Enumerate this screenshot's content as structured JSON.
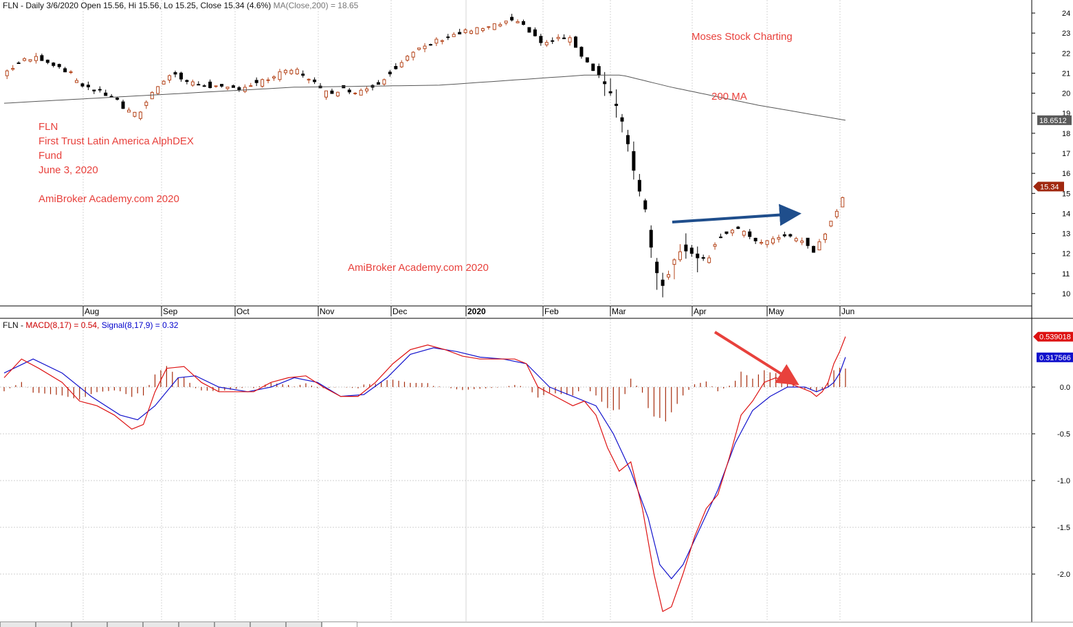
{
  "header": {
    "price_info": "FLN - Daily 3/6/2020 Open 15.56, Hi 15.56, Lo 15.25, Close 15.34 (4.6%)",
    "ma_info": "MA(Close,200) = 18.65",
    "macd_prefix": "FLN - ",
    "macd_label": "MACD(8,17) = 0.54,",
    "signal_label": "Signal(8,17,9) = 0.32"
  },
  "annotations": {
    "fund_lines": [
      "FLN",
      "First Trust Latin America AlphDEX",
      "Fund",
      "June 3, 2020",
      "",
      "AmiBroker Academy.com  2020"
    ],
    "watermark_top": "Moses Stock Charting",
    "ma_label": "200 MA",
    "watermark_mid": "AmiBroker Academy.com 2020"
  },
  "colors": {
    "up_candle": "#b5451b",
    "down_candle": "#000000",
    "ma_line": "#555555",
    "macd_line": "#dd1111",
    "signal_line": "#1111cc",
    "histogram": "#a52a0a",
    "arrow_blue": "#1f4e8c",
    "arrow_red": "#e8413c",
    "annotation": "#e8413c"
  },
  "chart_data": [
    {
      "type": "candlestick",
      "title": "FLN - Daily 3/6/2020",
      "x_labels": [
        "Aug",
        "Sep",
        "Oct",
        "Nov",
        "Dec",
        "2020",
        "Feb",
        "Mar",
        "Apr",
        "May",
        "Jun"
      ],
      "ylim": [
        9.5,
        24.5
      ],
      "y_ticks": [
        10,
        11,
        12,
        13,
        14,
        15,
        16,
        17,
        18,
        19,
        20,
        21,
        22,
        23,
        24
      ],
      "price_badges": [
        {
          "value": "18.6512",
          "kind": "ma"
        },
        {
          "value": "15.34",
          "kind": "price"
        }
      ],
      "close_waypoints": [
        [
          0,
          21.0
        ],
        [
          6,
          21.6
        ],
        [
          12,
          21.8
        ],
        [
          18,
          21.4
        ],
        [
          22,
          21.1
        ],
        [
          26,
          20.5
        ],
        [
          32,
          20.1
        ],
        [
          38,
          19.8
        ],
        [
          42,
          19.1
        ],
        [
          46,
          18.9
        ],
        [
          50,
          19.8
        ],
        [
          54,
          20.6
        ],
        [
          58,
          21.0
        ],
        [
          64,
          20.5
        ],
        [
          70,
          20.4
        ],
        [
          76,
          20.2
        ],
        [
          82,
          20.3
        ],
        [
          88,
          20.5
        ],
        [
          94,
          20.9
        ],
        [
          100,
          21.2
        ],
        [
          106,
          20.7
        ],
        [
          110,
          20.0
        ],
        [
          116,
          20.2
        ],
        [
          122,
          20.1
        ],
        [
          128,
          20.4
        ],
        [
          134,
          21.2
        ],
        [
          140,
          21.9
        ],
        [
          146,
          22.4
        ],
        [
          152,
          22.8
        ],
        [
          160,
          23.1
        ],
        [
          168,
          23.3
        ],
        [
          174,
          23.6
        ],
        [
          180,
          23.3
        ],
        [
          186,
          22.4
        ],
        [
          192,
          22.8
        ],
        [
          196,
          22.6
        ],
        [
          200,
          21.7
        ],
        [
          204,
          21.1
        ],
        [
          208,
          20.3
        ],
        [
          212,
          19.0
        ],
        [
          215,
          17.5
        ],
        [
          218,
          15.6
        ],
        [
          221,
          14.2
        ],
        [
          223,
          12.4
        ],
        [
          225,
          11.1
        ],
        [
          227,
          10.4
        ],
        [
          230,
          11.4
        ],
        [
          234,
          12.3
        ],
        [
          238,
          12.0
        ],
        [
          242,
          11.6
        ],
        [
          246,
          12.8
        ],
        [
          252,
          13.2
        ],
        [
          258,
          12.8
        ],
        [
          262,
          12.4
        ],
        [
          266,
          12.9
        ],
        [
          272,
          12.8
        ],
        [
          276,
          12.5
        ],
        [
          279,
          12.1
        ],
        [
          282,
          12.8
        ],
        [
          284,
          13.2
        ],
        [
          286,
          13.9
        ],
        [
          288,
          14.3
        ],
        [
          290,
          15.34
        ]
      ],
      "ma_200": [
        [
          0,
          19.5
        ],
        [
          100,
          20.3
        ],
        [
          150,
          20.4
        ],
        [
          200,
          20.9
        ],
        [
          213,
          20.9
        ],
        [
          230,
          20.3
        ],
        [
          260,
          19.4
        ],
        [
          290,
          18.65
        ]
      ]
    },
    {
      "type": "line",
      "title": "MACD(8,17) = 0.54, Signal(8,17,9) = 0.32",
      "ylim": [
        -2.45,
        0.6
      ],
      "y_ticks": [
        0.0,
        -0.5,
        -1.0,
        -1.5,
        -2.0
      ],
      "value_badges": [
        {
          "value": "0.539018",
          "series": "MACD"
        },
        {
          "value": "0.317566",
          "series": "Signal"
        }
      ],
      "series": [
        {
          "name": "MACD",
          "points": [
            [
              0,
              0.1
            ],
            [
              6,
              0.3
            ],
            [
              12,
              0.2
            ],
            [
              20,
              0.05
            ],
            [
              26,
              -0.15
            ],
            [
              32,
              -0.2
            ],
            [
              38,
              -0.3
            ],
            [
              44,
              -0.45
            ],
            [
              48,
              -0.4
            ],
            [
              52,
              -0.05
            ],
            [
              56,
              0.2
            ],
            [
              62,
              0.22
            ],
            [
              68,
              0.05
            ],
            [
              74,
              -0.05
            ],
            [
              80,
              -0.05
            ],
            [
              86,
              -0.05
            ],
            [
              92,
              0.05
            ],
            [
              98,
              0.1
            ],
            [
              104,
              0.12
            ],
            [
              110,
              0.0
            ],
            [
              116,
              -0.1
            ],
            [
              122,
              -0.1
            ],
            [
              128,
              0.05
            ],
            [
              134,
              0.25
            ],
            [
              140,
              0.4
            ],
            [
              146,
              0.45
            ],
            [
              152,
              0.4
            ],
            [
              158,
              0.33
            ],
            [
              164,
              0.3
            ],
            [
              170,
              0.3
            ],
            [
              176,
              0.3
            ],
            [
              180,
              0.25
            ],
            [
              184,
              0.0
            ],
            [
              190,
              -0.1
            ],
            [
              196,
              -0.2
            ],
            [
              200,
              -0.15
            ],
            [
              204,
              -0.3
            ],
            [
              208,
              -0.65
            ],
            [
              212,
              -0.9
            ],
            [
              216,
              -0.8
            ],
            [
              220,
              -1.3
            ],
            [
              224,
              -2.0
            ],
            [
              227,
              -2.4
            ],
            [
              230,
              -2.35
            ],
            [
              234,
              -2.0
            ],
            [
              238,
              -1.6
            ],
            [
              242,
              -1.3
            ],
            [
              246,
              -1.15
            ],
            [
              250,
              -0.75
            ],
            [
              254,
              -0.3
            ],
            [
              258,
              -0.15
            ],
            [
              262,
              0.05
            ],
            [
              266,
              0.1
            ],
            [
              270,
              0.05
            ],
            [
              274,
              0.0
            ],
            [
              278,
              -0.05
            ],
            [
              280,
              -0.1
            ],
            [
              282,
              -0.05
            ],
            [
              284,
              0.05
            ],
            [
              286,
              0.25
            ],
            [
              288,
              0.38
            ],
            [
              290,
              0.54
            ]
          ]
        },
        {
          "name": "Signal",
          "points": [
            [
              0,
              0.15
            ],
            [
              10,
              0.3
            ],
            [
              20,
              0.15
            ],
            [
              30,
              -0.1
            ],
            [
              40,
              -0.3
            ],
            [
              46,
              -0.35
            ],
            [
              52,
              -0.2
            ],
            [
              60,
              0.1
            ],
            [
              66,
              0.12
            ],
            [
              74,
              0.0
            ],
            [
              84,
              -0.05
            ],
            [
              92,
              0.0
            ],
            [
              100,
              0.1
            ],
            [
              108,
              0.05
            ],
            [
              116,
              -0.1
            ],
            [
              124,
              -0.08
            ],
            [
              132,
              0.1
            ],
            [
              140,
              0.35
            ],
            [
              148,
              0.42
            ],
            [
              156,
              0.38
            ],
            [
              164,
              0.32
            ],
            [
              172,
              0.3
            ],
            [
              180,
              0.25
            ],
            [
              188,
              0.0
            ],
            [
              196,
              -0.1
            ],
            [
              204,
              -0.2
            ],
            [
              210,
              -0.5
            ],
            [
              216,
              -0.9
            ],
            [
              222,
              -1.4
            ],
            [
              226,
              -1.9
            ],
            [
              230,
              -2.05
            ],
            [
              234,
              -1.9
            ],
            [
              240,
              -1.5
            ],
            [
              246,
              -1.1
            ],
            [
              252,
              -0.6
            ],
            [
              258,
              -0.25
            ],
            [
              264,
              -0.1
            ],
            [
              270,
              0.0
            ],
            [
              276,
              0.0
            ],
            [
              280,
              -0.05
            ],
            [
              284,
              0.0
            ],
            [
              286,
              0.05
            ],
            [
              288,
              0.15
            ],
            [
              290,
              0.32
            ]
          ]
        }
      ]
    }
  ],
  "tabs": [
    "",
    "",
    "",
    "",
    "",
    "",
    "",
    "",
    "",
    ""
  ]
}
